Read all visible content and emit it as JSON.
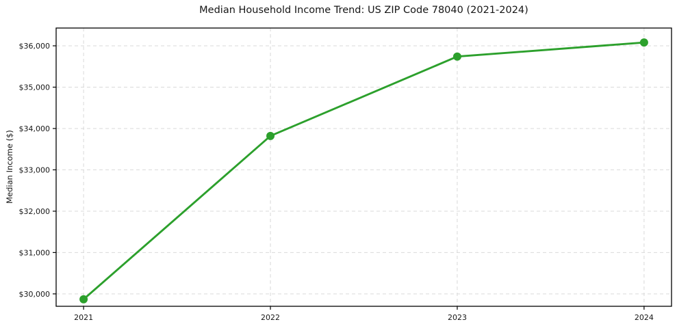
{
  "chart_data": {
    "type": "line",
    "title": "Median Household Income Trend: US ZIP Code 78040 (2021-2024)",
    "xlabel": "",
    "ylabel": "Median Income ($)",
    "x": [
      2021,
      2022,
      2023,
      2024
    ],
    "series": [
      {
        "name": "Median Household Income",
        "values": [
          29870,
          33820,
          35740,
          36080
        ]
      }
    ],
    "xticks": {
      "values": [
        2021,
        2022,
        2023,
        2024
      ],
      "labels": [
        "2021",
        "2022",
        "2023",
        "2024"
      ]
    },
    "yticks": {
      "values": [
        30000,
        31000,
        32000,
        33000,
        34000,
        35000,
        36000
      ],
      "labels": [
        "$30,000",
        "$31,000",
        "$32,000",
        "$33,000",
        "$34,000",
        "$35,000",
        "$36,000"
      ]
    },
    "xlim": [
      2020.853,
      2024.147
    ],
    "ylim": [
      29700,
      36430
    ],
    "grid": true,
    "grid_style": "dashed",
    "legend": "none",
    "colors": {
      "line": "#2ca02c",
      "marker": "#2ca02c",
      "grid": "#d9d9d9",
      "frame": "#000000",
      "text": "#151515",
      "background": "#ffffff"
    }
  }
}
